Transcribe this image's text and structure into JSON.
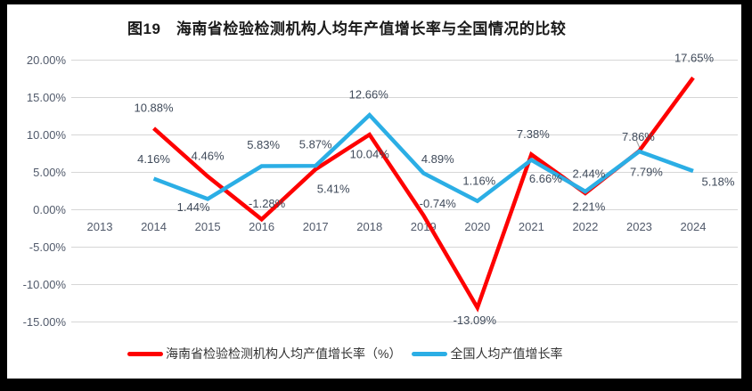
{
  "frame": {
    "background_color": "#000000",
    "card_color": "#ffffff"
  },
  "chart_data": {
    "type": "line",
    "title": "图19　海南省检验检测机构人均年产值增长率与全国情况的比较",
    "categories": [
      "2013",
      "2014",
      "2015",
      "2016",
      "2017",
      "2018",
      "2019",
      "2020",
      "2021",
      "2022",
      "2023",
      "2024"
    ],
    "xlabel": "",
    "ylabel": "",
    "ylim": [
      -17.5,
      22.5
    ],
    "grid": true,
    "gridline_color": "#D6D6D6",
    "legend_position": "bottom",
    "y_axis": {
      "ticks": [
        {
          "label": "20.00%",
          "value": 20
        },
        {
          "label": "15.00%",
          "value": 15
        },
        {
          "label": "10.00%",
          "value": 10
        },
        {
          "label": "5.00%",
          "value": 5
        },
        {
          "label": "0.00%",
          "value": 0
        },
        {
          "label": "-5.00%",
          "value": -5
        },
        {
          "label": "-10.00%",
          "value": -10
        },
        {
          "label": "-15.00%",
          "value": -15
        }
      ]
    },
    "series": [
      {
        "name": "海南省检验检测机构人均产值增长率（%）",
        "color": "#FE0000",
        "values": [
          null,
          10.88,
          4.46,
          -1.28,
          5.41,
          10.04,
          -0.74,
          -13.09,
          7.38,
          2.21,
          7.86,
          17.65
        ],
        "labels": [
          "",
          "10.88%",
          "4.46%",
          "-1.28%",
          "5.41%",
          "10.04%",
          "-0.74%",
          "-13.09%",
          "7.38%",
          "2.21%",
          "7.86%",
          "17.65%"
        ]
      },
      {
        "name": "全国人均产值增长率",
        "color": "#2BAEE5",
        "values": [
          null,
          4.16,
          1.44,
          5.83,
          5.87,
          12.66,
          4.89,
          1.16,
          6.66,
          2.44,
          7.79,
          5.18
        ],
        "labels": [
          "",
          "4.16%",
          "1.44%",
          "5.83%",
          "5.87%",
          "12.66%",
          "4.89%",
          "1.16%",
          "6.66%",
          "2.44%",
          "7.79%",
          "5.18%"
        ]
      }
    ]
  },
  "legend": {
    "items": [
      {
        "label": "海南省检验检测机构人均产值增长率（%）",
        "color": "#FE0000"
      },
      {
        "label": "全国人均产值增长率",
        "color": "#2BAEE5"
      }
    ]
  }
}
